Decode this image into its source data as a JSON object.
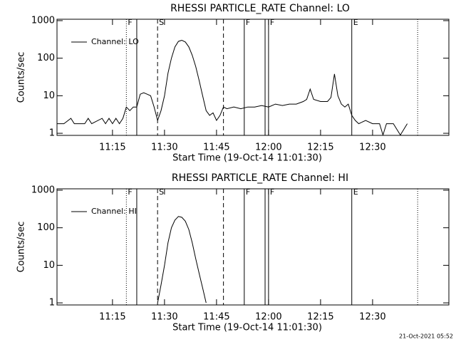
{
  "chart_data": [
    {
      "type": "line",
      "title": "RHESSI PARTICLE_RATE Channel: LO",
      "x_label": "Start Time (19-Oct-14 11:01:30)",
      "y_label": "Counts/sec",
      "log_scale": true,
      "legend": "upper left",
      "color": "#000000",
      "xlim": [
        "10:59",
        "12:52"
      ],
      "xticks": [
        "11:15",
        "11:30",
        "11:45",
        "12:00",
        "12:15",
        "12:30"
      ],
      "ylim": [
        0.88,
        1090
      ],
      "yticks": [
        1,
        10,
        100,
        1000
      ],
      "x": [
        "10:59",
        "11:01",
        "11:03",
        "11:04",
        "11:07",
        "11:08",
        "11:09",
        "11:12",
        "11:13",
        "11:14",
        "11:15",
        "11:16",
        "11:17",
        "11:18",
        "11:19",
        "11:20",
        "11:21",
        "11:22",
        "11:23",
        "11:24",
        "11:25",
        "11:26",
        "11:27",
        "11:28",
        "11:29",
        "11:30",
        "11:31",
        "11:32",
        "11:33",
        "11:34",
        "11:35",
        "11:36",
        "11:37",
        "11:38",
        "11:39",
        "11:40",
        "11:41",
        "11:42",
        "11:43",
        "11:44",
        "11:45",
        "11:46",
        "11:47",
        "11:48",
        "11:50",
        "11:52",
        "11:54",
        "11:56",
        "11:58",
        "12:00",
        "12:02",
        "12:04",
        "12:06",
        "12:08",
        "12:10",
        "12:11",
        "12:12",
        "12:13",
        "12:15",
        "12:17",
        "12:18",
        "12:19",
        "12:20",
        "12:21",
        "12:22",
        "12:23",
        "12:24",
        "12:25",
        "12:26",
        "12:28",
        "12:30",
        "12:32",
        "12:33",
        "12:34",
        "12:36",
        "12:38",
        "12:40"
      ],
      "series": [
        {
          "name": "Channel: LO",
          "color": "#000000",
          "values": [
            1.8,
            1.8,
            2.5,
            1.8,
            1.8,
            2.5,
            1.8,
            2.5,
            1.8,
            2.5,
            1.8,
            2.5,
            1.8,
            2.5,
            5,
            4,
            5,
            5,
            11,
            12,
            11,
            10,
            5,
            2.2,
            4,
            10,
            40,
            100,
            200,
            280,
            300,
            270,
            200,
            120,
            60,
            25,
            10,
            4,
            3,
            3.5,
            2.2,
            3,
            5,
            4.5,
            5,
            4.5,
            5,
            5,
            5.5,
            5,
            6,
            5.5,
            6,
            6,
            7,
            8,
            15,
            8,
            7,
            7,
            9,
            38,
            10,
            6,
            5,
            6,
            3,
            2.2,
            1.8,
            2.2,
            1.8,
            1.8,
            0.9,
            1.8,
            1.8,
            0.9,
            1.8
          ]
        }
      ],
      "events": [
        {
          "x": "11:19",
          "style": "dotted",
          "label": "F"
        },
        {
          "x": "11:22",
          "style": "solid"
        },
        {
          "x": "11:28",
          "style": "dashed",
          "label": "S"
        },
        {
          "x": "11:47",
          "style": "dashed"
        },
        {
          "x": "11:53",
          "style": "solid",
          "label": "F"
        },
        {
          "x": "11:59",
          "style": "solid"
        },
        {
          "x": "12:00",
          "style": "solid",
          "label": "F"
        },
        {
          "x": "12:24",
          "style": "solid",
          "label": "E"
        },
        {
          "x": "12:43",
          "style": "dotted"
        }
      ]
    },
    {
      "type": "line",
      "title": "RHESSI PARTICLE_RATE Channel: HI",
      "x_label": "Start Time (19-Oct-14 11:01:30)",
      "y_label": "Counts/sec",
      "log_scale": true,
      "legend": "upper left",
      "color": "#000000",
      "xlim": [
        "10:59",
        "12:52"
      ],
      "xticks": [
        "11:15",
        "11:30",
        "11:45",
        "12:00",
        "12:15",
        "12:30"
      ],
      "ylim": [
        0.88,
        1090
      ],
      "yticks": [
        1,
        10,
        100,
        1000
      ],
      "x": [
        "11:28",
        "11:29",
        "11:30",
        "11:31",
        "11:32",
        "11:33",
        "11:34",
        "11:35",
        "11:36",
        "11:37",
        "11:38",
        "11:39",
        "11:40",
        "11:41",
        "11:42"
      ],
      "series": [
        {
          "name": "Channel: HI",
          "color": "#000000",
          "values": [
            1,
            3,
            10,
            40,
            100,
            160,
            200,
            190,
            150,
            90,
            40,
            15,
            6,
            2.5,
            1
          ]
        }
      ],
      "events": [
        {
          "x": "11:19",
          "style": "dotted",
          "label": "F"
        },
        {
          "x": "11:22",
          "style": "solid"
        },
        {
          "x": "11:28",
          "style": "dashed",
          "label": "S"
        },
        {
          "x": "11:47",
          "style": "dashed"
        },
        {
          "x": "11:53",
          "style": "solid",
          "label": "F"
        },
        {
          "x": "11:59",
          "style": "solid"
        },
        {
          "x": "12:00",
          "style": "solid",
          "label": "F"
        },
        {
          "x": "12:24",
          "style": "solid",
          "label": "E"
        },
        {
          "x": "12:43",
          "style": "dotted"
        }
      ]
    }
  ],
  "footer": "21-Oct-2021 05:52"
}
